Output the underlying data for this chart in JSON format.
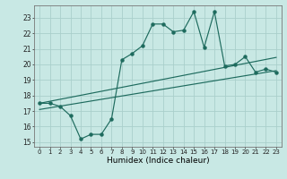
{
  "title": "",
  "xlabel": "Humidex (Indice chaleur)",
  "ylabel": "",
  "background_color": "#c8e8e4",
  "grid_color": "#aacfcb",
  "line_color": "#1e6b5e",
  "x_ticks": [
    0,
    1,
    2,
    3,
    4,
    5,
    6,
    7,
    8,
    9,
    10,
    11,
    12,
    13,
    14,
    15,
    16,
    17,
    18,
    19,
    20,
    21,
    22,
    23
  ],
  "y_ticks": [
    15,
    16,
    17,
    18,
    19,
    20,
    21,
    22,
    23
  ],
  "xlim": [
    -0.5,
    23.5
  ],
  "ylim": [
    14.7,
    23.8
  ],
  "main_line_x": [
    0,
    1,
    2,
    3,
    4,
    5,
    6,
    7,
    8,
    9,
    10,
    11,
    12,
    13,
    14,
    15,
    16,
    17,
    18,
    19,
    20,
    21,
    22,
    23
  ],
  "main_line_y": [
    17.5,
    17.5,
    17.3,
    16.7,
    15.2,
    15.5,
    15.5,
    16.5,
    20.3,
    20.7,
    21.2,
    22.6,
    22.6,
    22.1,
    22.2,
    23.4,
    21.1,
    23.4,
    19.9,
    20.0,
    20.5,
    19.5,
    19.7,
    19.5
  ],
  "line1_x": [
    0,
    23
  ],
  "line1_y": [
    17.5,
    20.45
  ],
  "line2_x": [
    0,
    23
  ],
  "line2_y": [
    17.1,
    19.6
  ]
}
